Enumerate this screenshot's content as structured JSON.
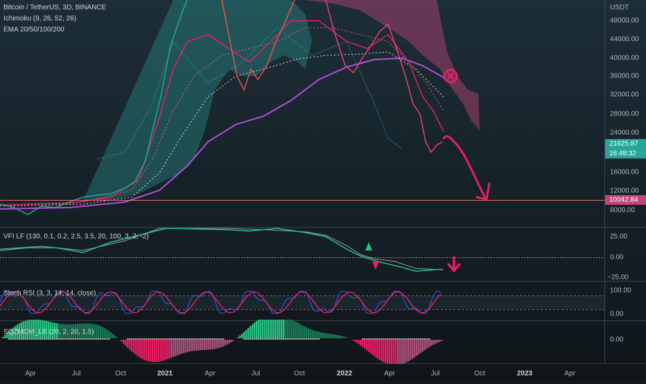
{
  "header": {
    "symbol": "Bitcoin / TetherUS, 3D, BINANCE",
    "indicators": [
      "Ichimoku (9, 26, 52, 26)",
      "EMA 20/50/100/200"
    ]
  },
  "price_axis": {
    "unit": "USDT",
    "labels": [
      "48000.00",
      "44000.00",
      "40000.00",
      "36000.00",
      "32000.00",
      "28000.00",
      "24000.00",
      "16000.00",
      "12000.00",
      "8000.00"
    ],
    "last_price": "21625.87",
    "countdown": "16:48:32",
    "line_price": "10042.84"
  },
  "panes": [
    {
      "title": "VFI LF (130, 0.1, 0.2, 2.5, 3.5, 20, 100, 3, 2, -2)",
      "labels": [
        "25.00",
        "0.00",
        "−25.00"
      ]
    },
    {
      "title": "Stoch RSI (3, 3, 14, 14, close)",
      "labels": [
        "100.00",
        "0.00"
      ]
    },
    {
      "title": "SQZMOM_LB (20, 2, 20, 1.5)",
      "labels": [
        "0.00"
      ]
    }
  ],
  "time_axis": [
    "Apr",
    "Jul",
    "Oct",
    "2021",
    "Apr",
    "Jul",
    "Oct",
    "2022",
    "Apr",
    "Jul",
    "Oct",
    "2023",
    "Apr"
  ]
}
